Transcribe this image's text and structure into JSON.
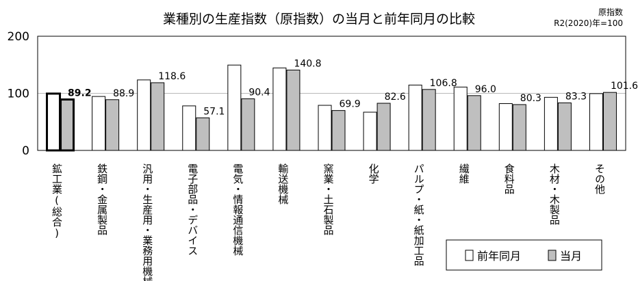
{
  "chart_data": {
    "type": "bar",
    "title": "業種別の生産指数（原指数）の当月と前年同月の比較",
    "note_line1": "原指数",
    "note_line2": "R2(2020)年=100",
    "categories": [
      "鉱工業(総合)",
      "鉄鋼・金属製品",
      "汎用・生産用・業務用機械",
      "電子部品・デバイス",
      "電気・情報通信機械",
      "輸送機械",
      "窯業・土石製品",
      "化学",
      "パルプ・紙・紙加工品",
      "繊維",
      "食料品",
      "木材・木製品",
      "その他"
    ],
    "series": [
      {
        "name": "前年同月",
        "color": "#ffffff",
        "values": [
          99.5,
          94.5,
          123.5,
          78.0,
          149.5,
          144.5,
          79.0,
          67.0,
          114.5,
          111.0,
          82.0,
          93.0,
          99.5
        ]
      },
      {
        "name": "当月",
        "color": "#bfbfbf",
        "values": [
          89.2,
          88.9,
          118.6,
          57.1,
          90.4,
          140.8,
          69.9,
          82.6,
          106.8,
          96.0,
          80.3,
          83.3,
          101.6
        ]
      }
    ],
    "current_labels": [
      "89.2",
      "88.9",
      "118.6",
      "57.1",
      "90.4",
      "140.8",
      "69.9",
      "82.6",
      "106.8",
      "96.0",
      "80.3",
      "83.3",
      "101.6"
    ],
    "yticks": [
      "0",
      "100",
      "200"
    ],
    "ylim": [
      0,
      200
    ],
    "grid": true,
    "legend_position": "bottom-right",
    "highlight_category": "鉱工業(総合)"
  }
}
